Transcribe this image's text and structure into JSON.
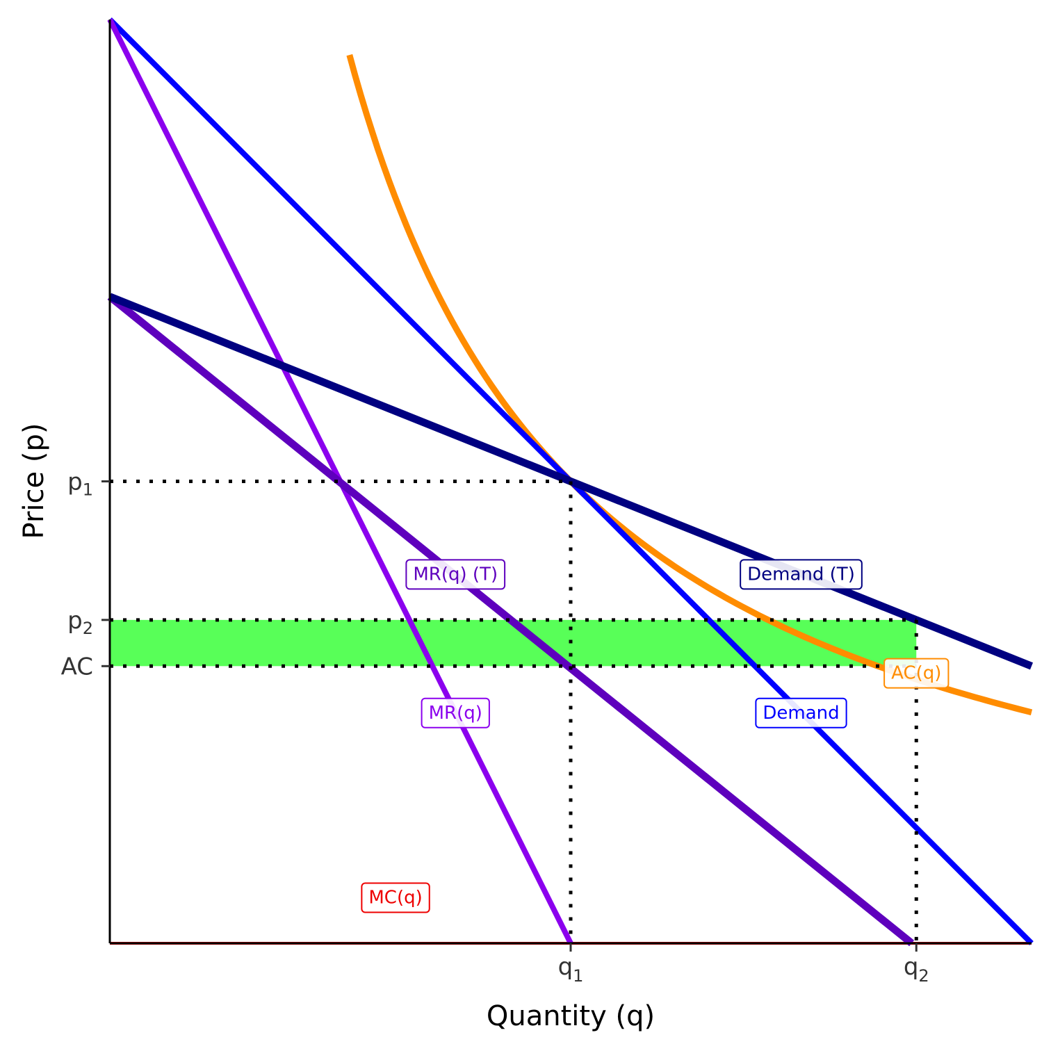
{
  "chart_data": {
    "type": "line",
    "title": "",
    "xlabel": "Quantity (q)",
    "ylabel": "Price (p)",
    "xlim": [
      0,
      10
    ],
    "ylim": [
      0,
      10
    ],
    "grid": false,
    "legend": "none",
    "x_ticks": [
      {
        "base": "q",
        "sub": "1",
        "value": 5
      },
      {
        "base": "q",
        "sub": "2",
        "value": 8.75
      }
    ],
    "y_ticks": [
      {
        "base": "p",
        "sub": "1",
        "value": 5
      },
      {
        "base": "p",
        "sub": "2",
        "value": 3.5
      },
      {
        "base": "AC",
        "sub": "",
        "value": 3
      }
    ],
    "series": [
      {
        "name": "Demand",
        "color": "#0000ff",
        "points": [
          [
            0,
            10
          ],
          [
            10,
            0
          ]
        ],
        "label_at": [
          7.5,
          2.5
        ]
      },
      {
        "name": "MR(q)",
        "color": "#8b00ee",
        "points": [
          [
            0,
            10
          ],
          [
            5,
            0
          ]
        ],
        "label_at": [
          3.75,
          2.5
        ]
      },
      {
        "name": "Demand (T)",
        "color": "#000080",
        "points": [
          [
            0,
            7
          ],
          [
            10,
            3
          ]
        ],
        "label_at": [
          7.5,
          4
        ]
      },
      {
        "name": "MR(q) (T)",
        "color": "#5e00bd",
        "points": [
          [
            0,
            7
          ],
          [
            8.7,
            0
          ]
        ],
        "label_at": [
          3.75,
          4
        ]
      },
      {
        "name": "MC(q)",
        "color": "#ee0000",
        "points": [
          [
            0,
            0
          ],
          [
            10,
            0
          ]
        ],
        "label_at": [
          3.1,
          0.5
        ]
      },
      {
        "name": "AC(q)",
        "color": "#ff8c00",
        "type": "ac_curve",
        "fixed_cost": 25,
        "x_range": [
          2.6,
          10
        ],
        "label_at": [
          8.75,
          2.93
        ]
      }
    ],
    "profit_rect": {
      "x": [
        0,
        8.75
      ],
      "y": [
        3,
        3.5
      ],
      "color": "#33ff33"
    },
    "guides": [
      {
        "from": [
          0,
          5
        ],
        "to": [
          5,
          5
        ]
      },
      {
        "from": [
          5,
          5
        ],
        "to": [
          5,
          0
        ]
      },
      {
        "from": [
          0,
          3.5
        ],
        "to": [
          8.75,
          3.5
        ]
      },
      {
        "from": [
          0,
          3
        ],
        "to": [
          8.75,
          3
        ]
      },
      {
        "from": [
          8.75,
          3.5
        ],
        "to": [
          8.75,
          0
        ]
      }
    ]
  }
}
